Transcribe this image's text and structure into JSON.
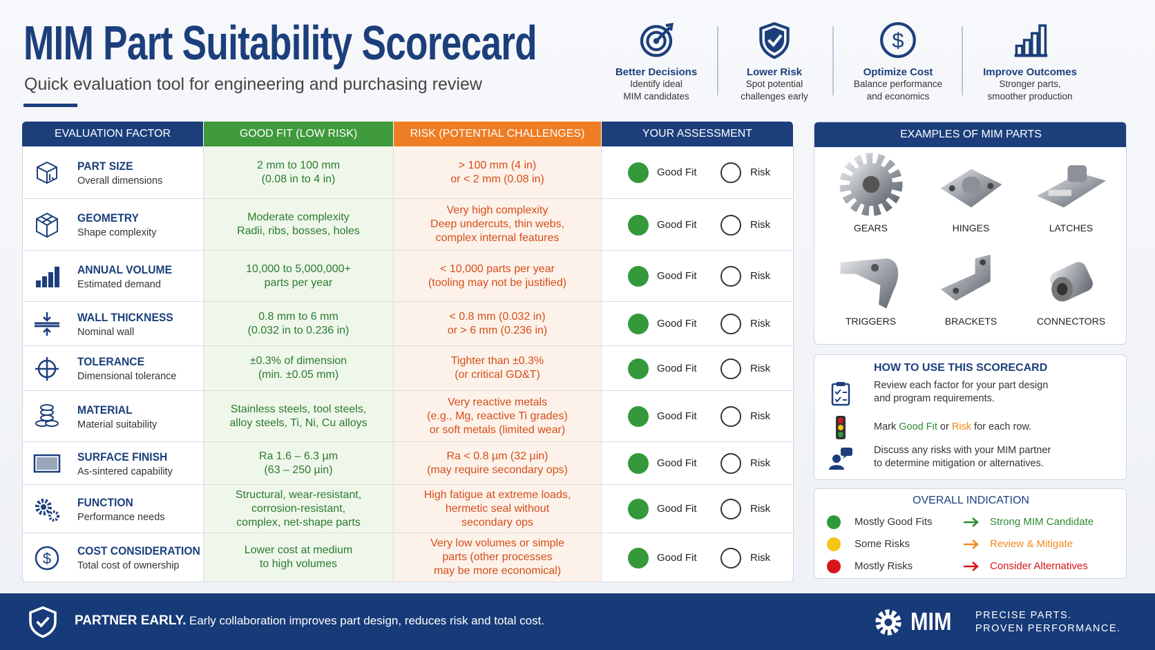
{
  "header": {
    "title": "MIM Part Suitability Scorecard",
    "subtitle": "Quick evaluation tool for engineering and purchasing review"
  },
  "benefits": [
    {
      "title": "Better Decisions",
      "lines": [
        "Identify ideal",
        "MIM candidates"
      ]
    },
    {
      "title": "Lower Risk",
      "lines": [
        "Spot potential",
        "challenges early"
      ]
    },
    {
      "title": "Optimize Cost",
      "lines": [
        "Balance performance",
        "and economics"
      ]
    },
    {
      "title": "Improve Outcomes",
      "lines": [
        "Stronger parts,",
        "smoother production"
      ]
    }
  ],
  "table": {
    "headers": [
      "EVALUATION FACTOR",
      "GOOD FIT (LOW RISK)",
      "RISK (POTENTIAL CHALLENGES)",
      "YOUR ASSESSMENT"
    ],
    "options": [
      "Good Fit",
      "Risk"
    ],
    "rows": [
      {
        "factor": "PART SIZE",
        "detail": "Overall dimensions",
        "good": [
          "2 mm to 100 mm",
          "(0.08 in to 4 in)"
        ],
        "risk": [
          "> 100 mm (4 in)",
          "or < 2 mm (0.08 in)"
        ]
      },
      {
        "factor": "GEOMETRY",
        "detail": "Shape complexity",
        "good": [
          "Moderate complexity",
          "Radii, ribs, bosses, holes"
        ],
        "risk": [
          "Very high complexity",
          "Deep undercuts, thin webs,",
          "complex internal features"
        ]
      },
      {
        "factor": "ANNUAL VOLUME",
        "detail": "Estimated demand",
        "good": [
          "10,000 to 5,000,000+",
          "parts per year"
        ],
        "risk": [
          "< 10,000 parts per year",
          "(tooling may not be justified)"
        ]
      },
      {
        "factor": "WALL THICKNESS",
        "detail": "Nominal wall",
        "good": [
          "0.8 mm to 6 mm",
          "(0.032 in to 0.236 in)"
        ],
        "risk": [
          "< 0.8 mm (0.032 in)",
          "or > 6 mm (0.236 in)"
        ]
      },
      {
        "factor": "TOLERANCE",
        "detail": "Dimensional tolerance",
        "good": [
          "±0.3% of dimension",
          "(min. ±0.05 mm)"
        ],
        "risk": [
          "Tighter than ±0.3%",
          "(or critical GD&T)"
        ]
      },
      {
        "factor": "MATERIAL",
        "detail": "Material suitability",
        "good": [
          "Stainless steels, tool steels,",
          "alloy steels, Ti, Ni, Cu alloys"
        ],
        "risk": [
          "Very reactive metals",
          "(e.g., Mg, reactive Ti grades)",
          "or soft metals (limited wear)"
        ]
      },
      {
        "factor": "SURFACE FINISH",
        "detail": "As-sintered capability",
        "good": [
          "Ra 1.6 – 6.3 µm",
          "(63 – 250 µin)"
        ],
        "risk": [
          "Ra < 0.8 µm (32 µin)",
          "(may require secondary ops)"
        ]
      },
      {
        "factor": "FUNCTION",
        "detail": "Performance needs",
        "good": [
          "Structural, wear-resistant,",
          "corrosion-resistant,",
          "complex, net-shape parts"
        ],
        "risk": [
          "High fatigue at extreme loads,",
          "hermetic seal without",
          "secondary ops"
        ]
      },
      {
        "factor": "COST CONSIDERATION",
        "detail": "Total cost of ownership",
        "good": [
          "Lower cost at medium",
          "to high volumes"
        ],
        "risk": [
          "Very low volumes or simple",
          "parts (other processes",
          "may be more economical)"
        ]
      }
    ]
  },
  "examples": {
    "title": "EXAMPLES OF MIM PARTS",
    "parts": [
      "GEARS",
      "HINGES",
      "LATCHES",
      "TRIGGERS",
      "BRACKETS",
      "CONNECTORS"
    ]
  },
  "how_to_use": {
    "title": "HOW TO USE THIS SCORECARD",
    "steps": [
      {
        "lines": [
          "Review each factor for your part design",
          "and program requirements."
        ]
      },
      {
        "parts": [
          "Mark",
          "Good Fit",
          "or",
          "Risk",
          "for each row."
        ]
      },
      {
        "lines": [
          "Discuss any risks with your MIM partner",
          "to determine mitigation or alternatives."
        ]
      }
    ]
  },
  "overall": {
    "title": "OVERALL INDICATION",
    "rows": [
      {
        "status": "Mostly Good Fits",
        "result": "Strong MIM Candidate",
        "dot_color": "#2e9a3a",
        "result_color": "#2e8a34"
      },
      {
        "status": "Some Risks",
        "result": "Review & Mitigate",
        "dot_color": "#f5c518",
        "result_color": "#f08a1c"
      },
      {
        "status": "Mostly Risks",
        "result": "Consider Alternatives",
        "dot_color": "#d7141a",
        "result_color": "#d7141a"
      }
    ]
  },
  "footer": {
    "headline": "PARTNER EARLY.",
    "message": "Early collaboration improves part design, reduces risk and total cost.",
    "brand": "MIM",
    "tagline": [
      "PRECISE PARTS.",
      "PROVEN PERFORMANCE."
    ]
  }
}
